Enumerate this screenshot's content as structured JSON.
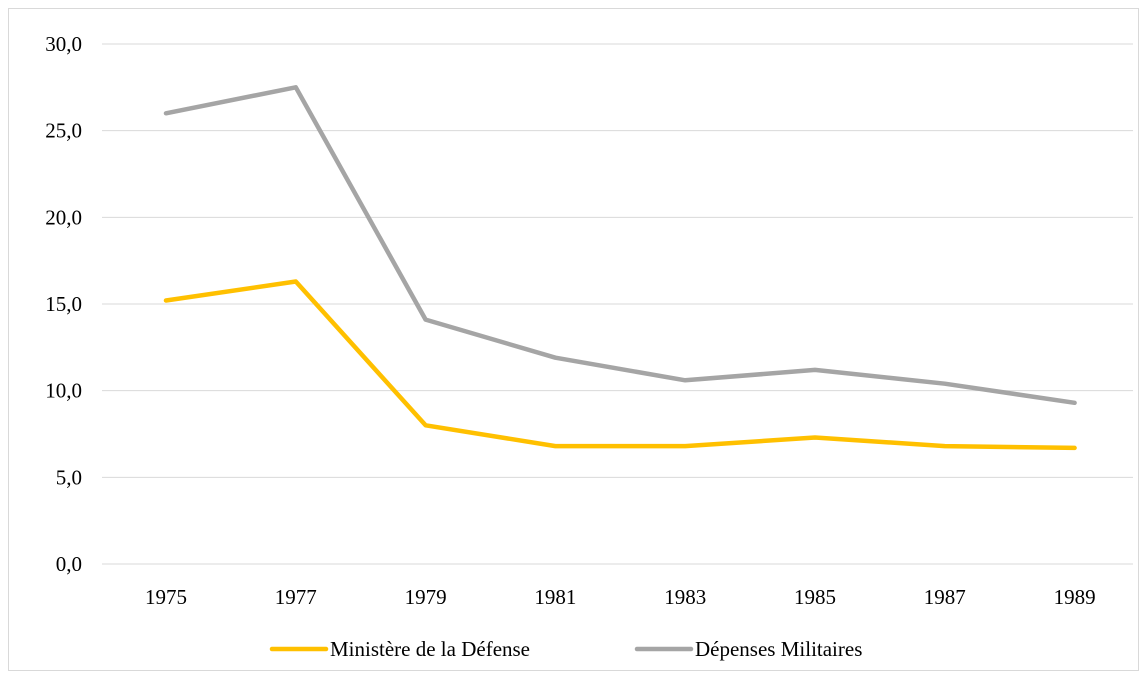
{
  "chart_data": {
    "type": "line",
    "title": "",
    "xlabel": "",
    "ylabel": "",
    "categories": [
      "1975",
      "1977",
      "1979",
      "1981",
      "1983",
      "1985",
      "1987",
      "1989"
    ],
    "series": [
      {
        "name": "Ministère de la Défense",
        "color": "#FFC000",
        "values": [
          15.2,
          16.3,
          8.0,
          6.8,
          6.8,
          7.3,
          6.8,
          6.7
        ]
      },
      {
        "name": "Dépenses Militaires",
        "color": "#A5A5A5",
        "values": [
          26.0,
          27.5,
          14.1,
          11.9,
          10.6,
          11.2,
          10.4,
          9.3
        ]
      }
    ],
    "ylim": [
      0,
      30
    ],
    "yticks": [
      "0,0",
      "5,0",
      "10,0",
      "15,0",
      "20,0",
      "25,0",
      "30,0"
    ],
    "grid": true,
    "legend_position": "bottom"
  }
}
